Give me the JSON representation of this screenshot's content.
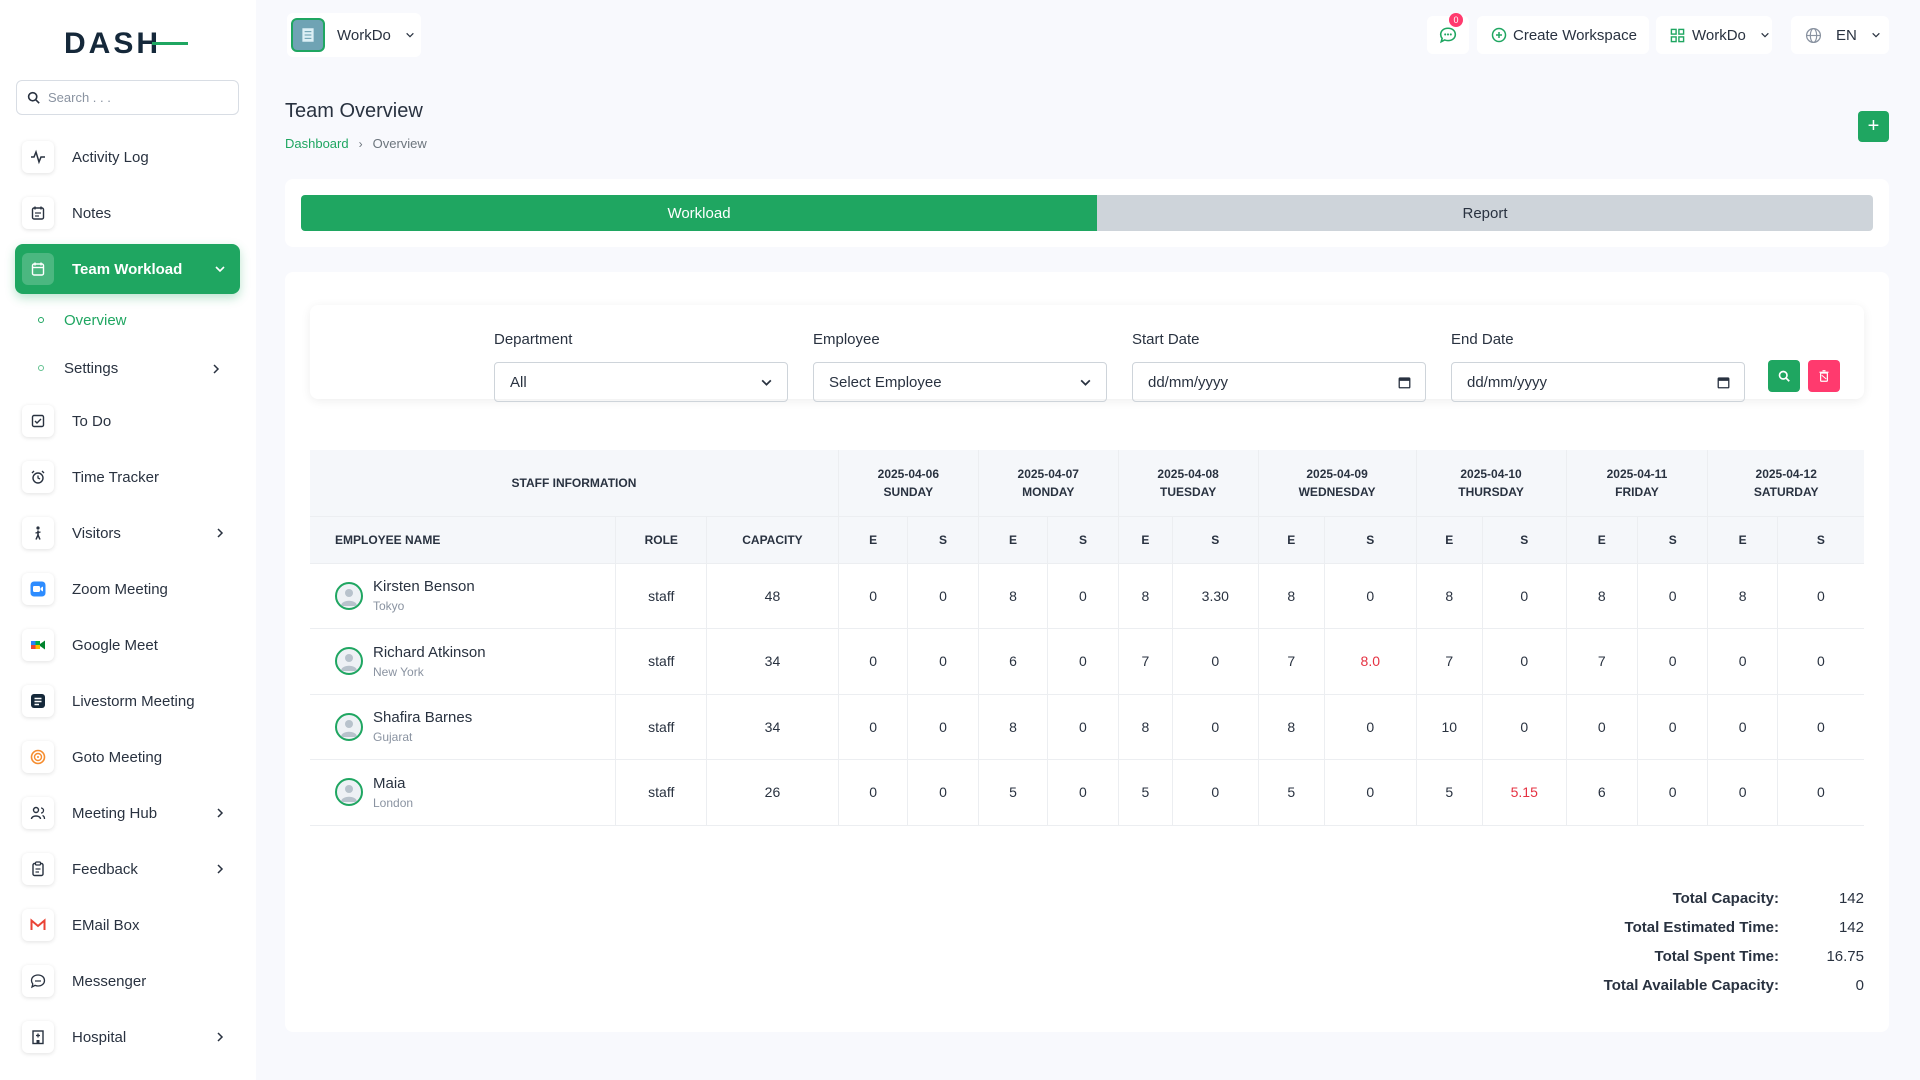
{
  "app": {
    "logo_text": "DASH"
  },
  "search": {
    "placeholder": "Search . . ."
  },
  "sidebar": {
    "items": [
      {
        "label": "Activity Log"
      },
      {
        "label": "Notes"
      },
      {
        "label": "Team Workload"
      },
      {
        "label": "To Do"
      },
      {
        "label": "Time Tracker"
      },
      {
        "label": "Visitors"
      },
      {
        "label": "Zoom Meeting"
      },
      {
        "label": "Google Meet"
      },
      {
        "label": "Livestorm Meeting"
      },
      {
        "label": "Goto Meeting"
      },
      {
        "label": "Meeting Hub"
      },
      {
        "label": "Feedback"
      },
      {
        "label": "EMail Box"
      },
      {
        "label": "Messenger"
      },
      {
        "label": "Hospital"
      }
    ],
    "sub_items": [
      {
        "label": "Overview"
      },
      {
        "label": "Settings"
      }
    ]
  },
  "header": {
    "workspace": "WorkDo",
    "notification_count": "0",
    "create_workspace": "Create Workspace",
    "workspace_menu": "WorkDo",
    "language": "EN"
  },
  "page": {
    "title": "Team Overview",
    "breadcrumb": [
      "Dashboard",
      "Overview"
    ],
    "add_label": "+"
  },
  "tabs": {
    "workload": "Workload",
    "report": "Report"
  },
  "filters": {
    "department_label": "Department",
    "department_value": "All",
    "employee_label": "Employee",
    "employee_value": "Select Employee",
    "start_label": "Start Date",
    "start_value": "dd/mm/yyyy",
    "end_label": "End Date",
    "end_value": "dd/mm/yyyy"
  },
  "table": {
    "staff_header": "STAFF INFORMATION",
    "col_name": "EMPLOYEE NAME",
    "col_role": "ROLE",
    "col_capacity": "CAPACITY",
    "sub_e": "E",
    "sub_s": "S",
    "days": [
      {
        "date": "2025-04-06",
        "day": "SUNDAY"
      },
      {
        "date": "2025-04-07",
        "day": "MONDAY"
      },
      {
        "date": "2025-04-08",
        "day": "TUESDAY"
      },
      {
        "date": "2025-04-09",
        "day": "WEDNESDAY"
      },
      {
        "date": "2025-04-10",
        "day": "THURSDAY"
      },
      {
        "date": "2025-04-11",
        "day": "FRIDAY"
      },
      {
        "date": "2025-04-12",
        "day": "SATURDAY"
      }
    ],
    "rows": [
      {
        "name": "Kirsten Benson",
        "location": "Tokyo",
        "role": "staff",
        "capacity": "48",
        "cells": [
          "0",
          "0",
          "8",
          "0",
          "8",
          "3.30",
          "8",
          "0",
          "8",
          "0",
          "8",
          "0",
          "8",
          "0"
        ]
      },
      {
        "name": "Richard Atkinson",
        "location": "New York",
        "role": "staff",
        "capacity": "34",
        "cells": [
          "0",
          "0",
          "6",
          "0",
          "7",
          "0",
          "7",
          "8.0",
          "7",
          "0",
          "7",
          "0",
          "0",
          "0"
        ]
      },
      {
        "name": "Shafira Barnes",
        "location": "Gujarat",
        "role": "staff",
        "capacity": "34",
        "cells": [
          "0",
          "0",
          "8",
          "0",
          "8",
          "0",
          "8",
          "0",
          "10",
          "0",
          "0",
          "0",
          "0",
          "0"
        ]
      },
      {
        "name": "Maia",
        "location": "London",
        "role": "staff",
        "capacity": "26",
        "cells": [
          "0",
          "0",
          "5",
          "0",
          "5",
          "0",
          "5",
          "0",
          "5",
          "5.15",
          "6",
          "0",
          "0",
          "0"
        ]
      }
    ]
  },
  "totals": {
    "capacity_label": "Total Capacity:",
    "capacity": "142",
    "estimated_label": "Total Estimated Time:",
    "estimated": "142",
    "spent_label": "Total Spent Time:",
    "spent": "16.75",
    "available_label": "Total Available Capacity:",
    "available": "0"
  },
  "colors": {
    "accent": "#1fa661",
    "overload": "#e53242",
    "danger": "#ff3a6e"
  }
}
